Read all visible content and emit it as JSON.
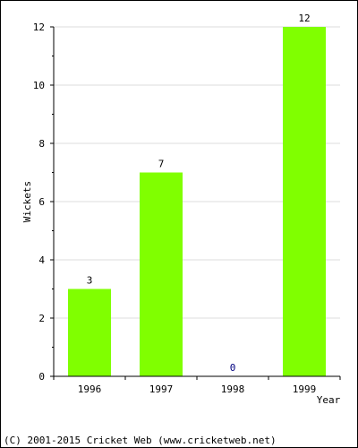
{
  "chart_data": {
    "type": "bar",
    "categories": [
      "1996",
      "1997",
      "1998",
      "1999"
    ],
    "values": [
      3,
      7,
      0,
      12
    ],
    "value_labels": [
      "3",
      "7",
      "0",
      "12"
    ],
    "xlabel": "Year",
    "ylabel": "Wickets",
    "ylim": [
      0,
      12
    ],
    "yticks": [
      "0",
      "2",
      "4",
      "6",
      "8",
      "10",
      "12"
    ],
    "ytick_values": [
      0,
      2,
      4,
      6,
      8,
      10,
      12
    ],
    "grid": true,
    "bar_color": "#80ff00"
  },
  "footer": "(C) 2001-2015 Cricket Web (www.cricketweb.net)"
}
